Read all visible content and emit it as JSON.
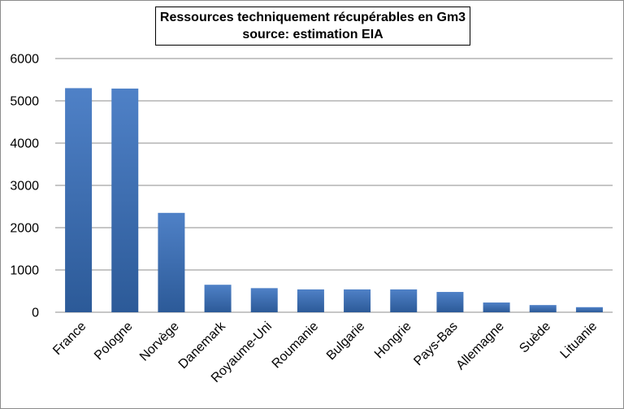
{
  "chart_data": {
    "type": "bar",
    "title": "Ressources techniquement récupérables en Gm3",
    "subtitle": "source: estimation EIA",
    "categories": [
      "France",
      "Pologne",
      "Norvège",
      "Danemark",
      "Royaume-Uni",
      "Roumanie",
      "Bulgarie",
      "Hongrie",
      "Pays-Bas",
      "Allemagne",
      "Suède",
      "Lituanie"
    ],
    "values": [
      5300,
      5290,
      2350,
      650,
      570,
      540,
      540,
      540,
      480,
      230,
      170,
      120
    ],
    "xlabel": "",
    "ylabel": "",
    "ylim": [
      0,
      6000
    ],
    "yticks": [
      0,
      1000,
      2000,
      3000,
      4000,
      5000,
      6000
    ],
    "grid": true,
    "legend": "none",
    "colors": {
      "bar_top": "#4f81c7",
      "bar_bottom": "#2c5a98",
      "grid": "#8c8c8c"
    }
  }
}
